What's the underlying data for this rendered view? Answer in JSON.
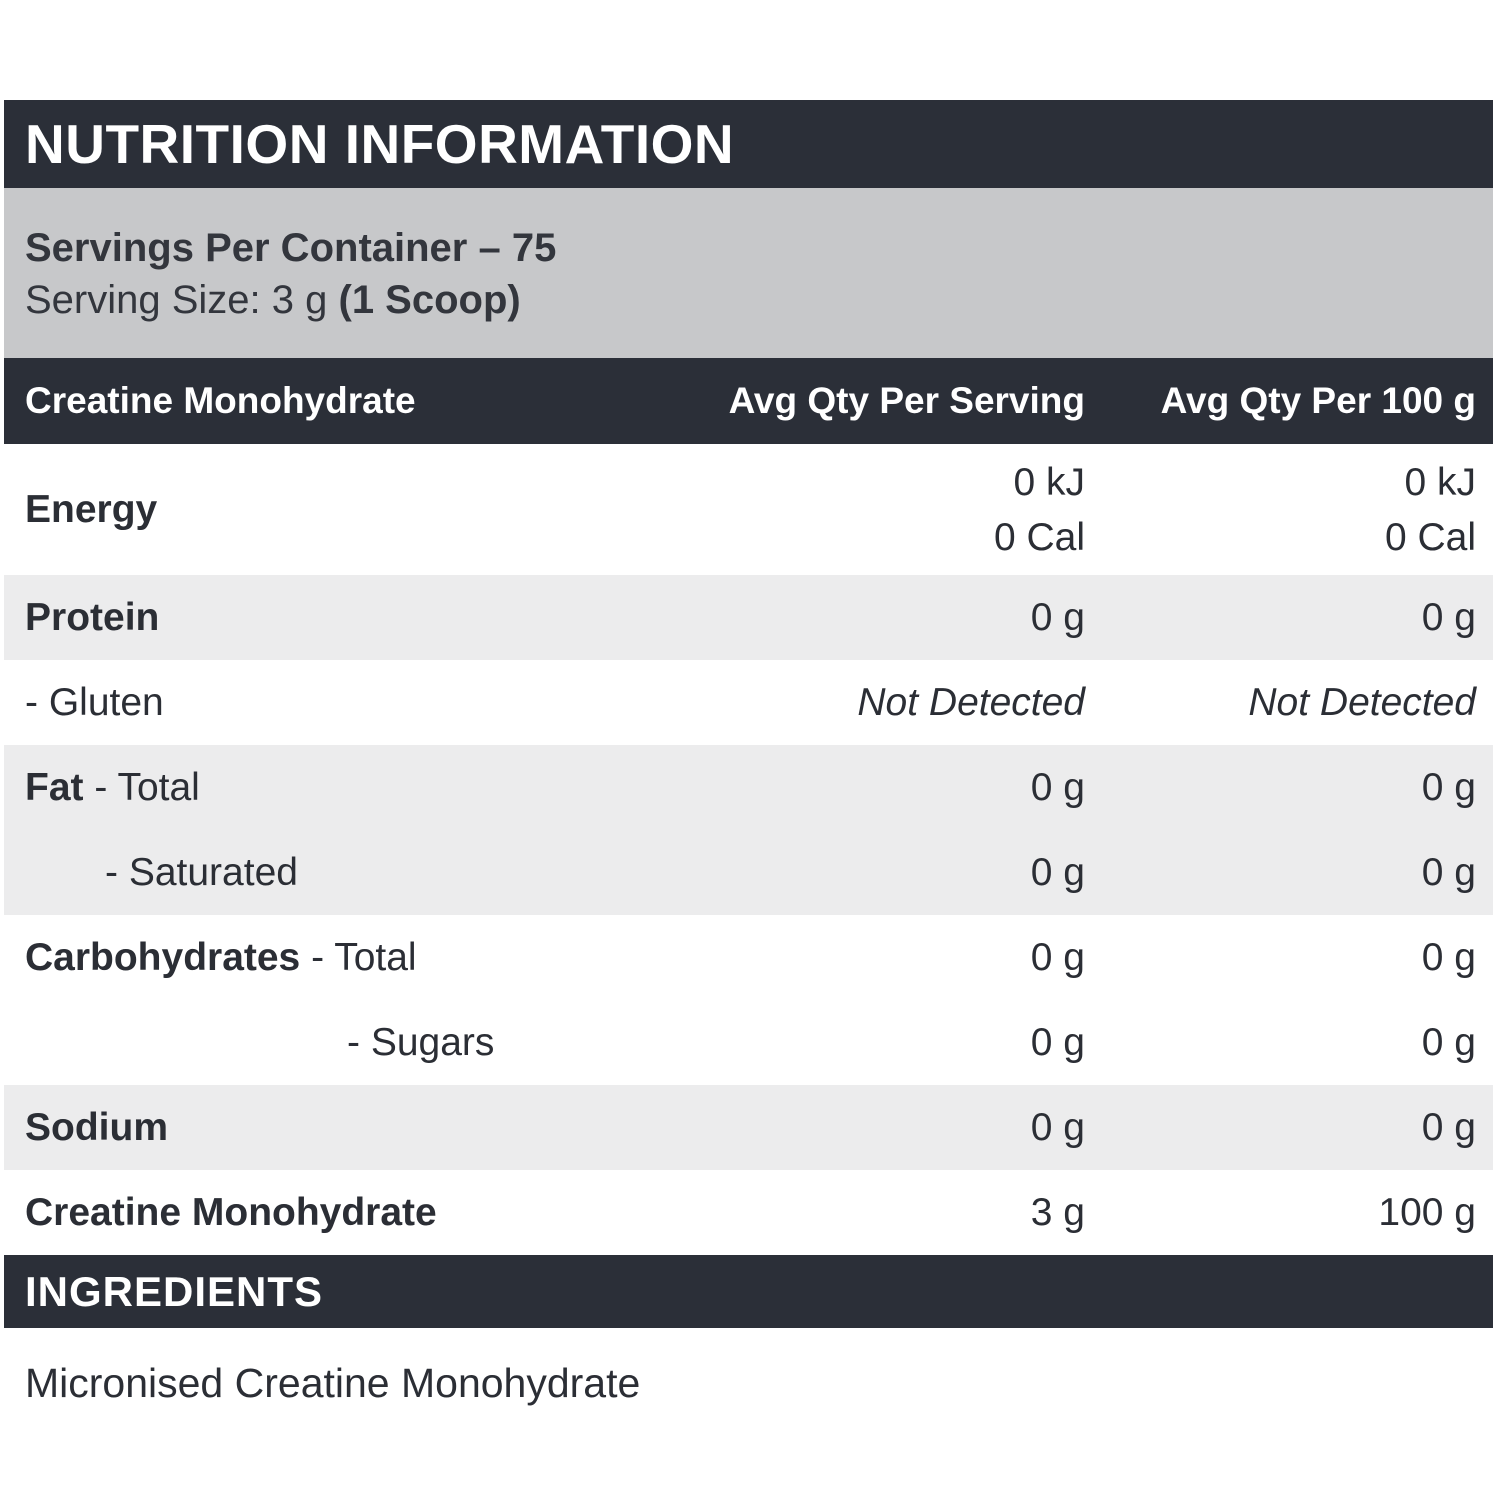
{
  "header": {
    "title": "NUTRITION INFORMATION"
  },
  "serving_info": {
    "servings_per_container": "Servings Per Container – 75",
    "serving_size_prefix": "Serving Size: 3 g ",
    "serving_size_bold": "(1 Scoop)"
  },
  "table": {
    "columns": {
      "label": "Creatine Monohydrate",
      "per_serving": "Avg Qty Per Serving",
      "per_100g": "Avg Qty Per 100 g"
    },
    "rows": [
      {
        "bold": "Energy",
        "rest": "",
        "serving": [
          "0 kJ",
          "0 Cal"
        ],
        "per100": [
          "0 kJ",
          "0 Cal"
        ]
      },
      {
        "bold": "Protein",
        "rest": "",
        "serving": [
          "0 g"
        ],
        "per100": [
          "0 g"
        ]
      },
      {
        "bold": "",
        "rest": "- Gluten",
        "serving": [
          "Not Detected"
        ],
        "per100": [
          "Not Detected"
        ]
      },
      {
        "bold": "Fat",
        "rest": " - Total",
        "serving": [
          "0 g"
        ],
        "per100": [
          "0 g"
        ]
      },
      {
        "bold": "",
        "rest": "- Saturated",
        "serving": [
          "0 g"
        ],
        "per100": [
          "0 g"
        ]
      },
      {
        "bold": "Carbohydrates",
        "rest": " - Total",
        "serving": [
          "0 g"
        ],
        "per100": [
          "0 g"
        ]
      },
      {
        "bold": "",
        "rest": "- Sugars",
        "serving": [
          "0 g"
        ],
        "per100": [
          "0 g"
        ]
      },
      {
        "bold": "Sodium",
        "rest": "",
        "serving": [
          "0 g"
        ],
        "per100": [
          "0 g"
        ]
      },
      {
        "bold": "Creatine Monohydrate",
        "rest": "",
        "serving": [
          "3 g"
        ],
        "per100": [
          "100 g"
        ]
      }
    ]
  },
  "ingredients": {
    "title": "INGREDIENTS",
    "text": "Micronised Creatine Monohydrate"
  },
  "colors": {
    "dark_bar": "#2b2f38",
    "serving_band": "#c7c8ca",
    "row_stripe": "#ececed",
    "text": "#2b2e35"
  }
}
